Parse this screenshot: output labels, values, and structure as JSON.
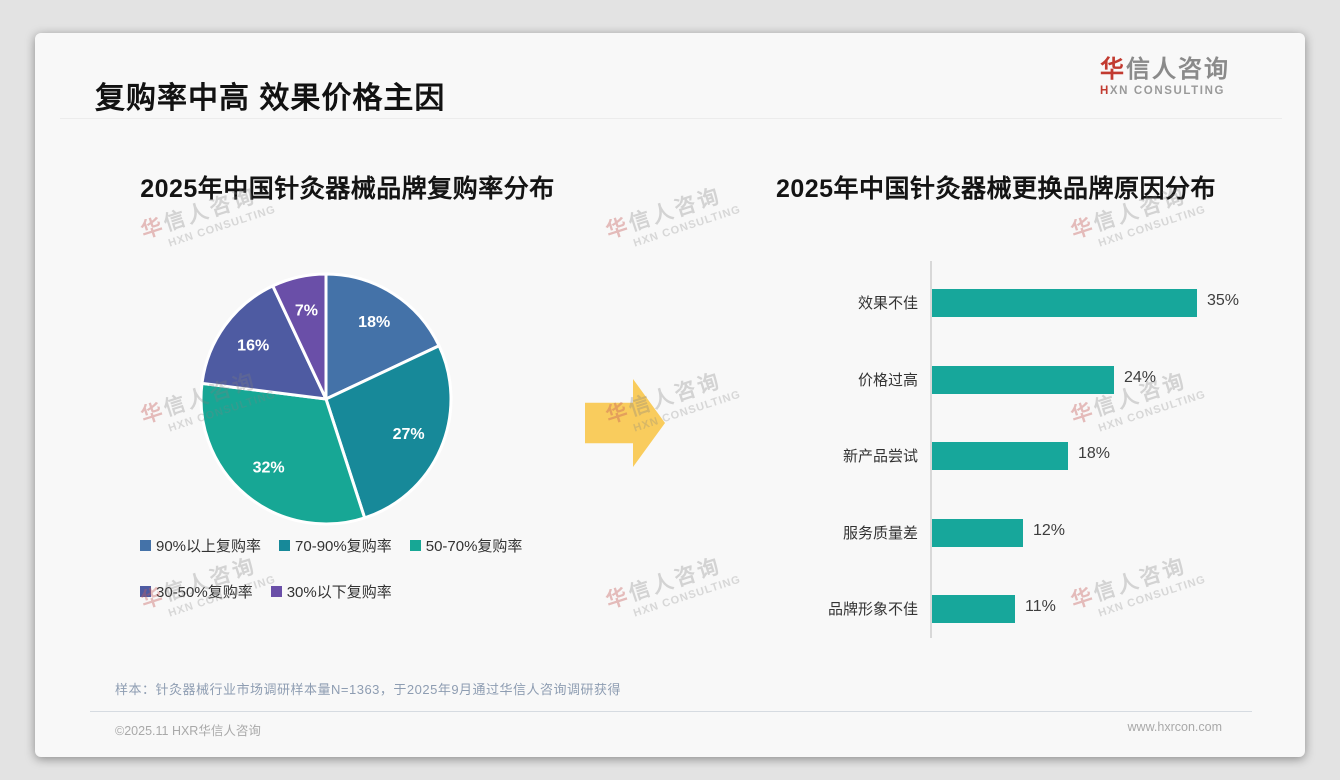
{
  "slide": {
    "title": "复购率中高 效果价格主因",
    "logo": {
      "cn_accent": "华",
      "cn_rest": "信人咨询",
      "en_accent": "H",
      "en_rest": "XN CONSULTING"
    },
    "watermark": {
      "cn_accent": "华",
      "cn_rest": "信人咨询",
      "en": "HXN CONSULTING"
    },
    "footer": {
      "sample_note": "样本：针灸器械行业市场调研样本量N=1363，于2025年9月通过华信人咨询调研获得",
      "copyright": "©2025.11 HXR华信人咨询",
      "website": "www.hxrcon.com"
    }
  },
  "colors": {
    "accent_red": "#C23A30",
    "bar_teal": "#17A79B",
    "arrow_yellow": "#F9CC5D",
    "card_bg": "#F8F8F8",
    "page_bg": "#E3E3E3"
  },
  "chart_data": [
    {
      "type": "pie",
      "title": "2025年中国针灸器械品牌复购率分布",
      "categories": [
        "90%以上复购率",
        "70-90%复购率",
        "50-70%复购率",
        "30-50%复购率",
        "30%以下复购率"
      ],
      "values": [
        18,
        27,
        32,
        16,
        7
      ],
      "data_labels": [
        "18%",
        "27%",
        "32%",
        "16%",
        "7%"
      ],
      "colors": [
        "#4472A8",
        "#178999",
        "#17A795",
        "#4E5BA2",
        "#6A4FA8"
      ],
      "start_angle_deg": 0,
      "direction": "clockwise",
      "legend_position": "bottom"
    },
    {
      "type": "bar",
      "orientation": "horizontal",
      "title": "2025年中国针灸器械更换品牌原因分布",
      "categories": [
        "效果不佳",
        "价格过高",
        "新产品尝试",
        "服务质量差",
        "品牌形象不佳"
      ],
      "values": [
        35,
        24,
        18,
        12,
        11
      ],
      "data_labels": [
        "35%",
        "24%",
        "18%",
        "12%",
        "11%"
      ],
      "bar_color": "#17A79B",
      "xlim": [
        0,
        38
      ],
      "grid": false,
      "legend": false
    }
  ]
}
